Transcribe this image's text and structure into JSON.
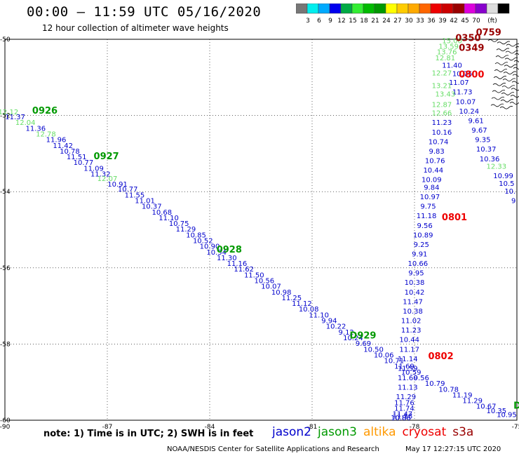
{
  "title": "00:00 – 11:59 UTC 05/16/2020",
  "subtitle": "12 hour collection of altimeter wave heights",
  "note": "note:  1) Time is in UTC;  2) SWH is in feet",
  "credit": "NOAA/NESDIS Center for Satellite Applications and Research",
  "timestamp": "May 17 12:27:15 UTC 2020",
  "legend": [
    {
      "name": "jason2",
      "color": "#0000cc"
    },
    {
      "name": "jason3",
      "color": "#009900"
    },
    {
      "name": "altika",
      "color": "#ff9900"
    },
    {
      "name": "cryosat",
      "color": "#ee0000"
    },
    {
      "name": "s3a",
      "color": "#990000"
    }
  ],
  "colorbar": {
    "colors": [
      "#777777",
      "#00eeee",
      "#00aaff",
      "#0000ee",
      "#00aa44",
      "#33ee33",
      "#00bb00",
      "#009900",
      "#ffff00",
      "#ffcc00",
      "#ffaa00",
      "#ff6600",
      "#ee0000",
      "#cc0000",
      "#990000",
      "#dd00dd",
      "#8800cc",
      "#dddddd",
      "#000000"
    ],
    "labels": [
      "3",
      "6",
      "9",
      "12",
      "15",
      "18",
      "21",
      "24",
      "27",
      "30",
      "33",
      "36",
      "39",
      "42",
      "45",
      "70"
    ],
    "unit": "(ft)"
  },
  "chart_data": {
    "type": "scatter",
    "xlim": [
      -90,
      -75
    ],
    "ylim": [
      -60,
      -50
    ],
    "x_ticks": [
      "-90",
      "-87",
      "-84",
      "-81",
      "-78",
      "-75"
    ],
    "y_ticks": [
      "-50",
      "-52",
      "-54",
      "-56",
      "-58",
      "-60"
    ],
    "pass_labels": [
      {
        "text": "0926",
        "lon": -89.2,
        "lat": -51.95,
        "color": "#009900"
      },
      {
        "text": "0927",
        "lon": -87.4,
        "lat": -53.15,
        "color": "#009900"
      },
      {
        "text": "0928",
        "lon": -83.8,
        "lat": -55.6,
        "color": "#009900"
      },
      {
        "text": "D929",
        "lon": -79.9,
        "lat": -57.85,
        "color": "#009900"
      },
      {
        "text": "D",
        "lon": -75.1,
        "lat": -59.7,
        "color": "#009900"
      },
      {
        "text": "0759",
        "lon": -76.2,
        "lat": -49.9,
        "color": "#990000"
      },
      {
        "text": "0350",
        "lon": -76.8,
        "lat": -50.05,
        "color": "#990000"
      },
      {
        "text": "0349",
        "lon": -76.7,
        "lat": -50.3,
        "color": "#990000"
      },
      {
        "text": "0800",
        "lon": -76.7,
        "lat": -51.0,
        "color": "#ee0000"
      },
      {
        "text": "0801",
        "lon": -77.2,
        "lat": -54.75,
        "color": "#ee0000"
      },
      {
        "text": "0802",
        "lon": -77.6,
        "lat": -58.4,
        "color": "#ee0000"
      }
    ],
    "series": [
      {
        "name": "jason3 pass",
        "color": "#0000cc",
        "points": [
          {
            "lon": -89.9,
            "lat": -51.97,
            "v": "12.12",
            "c": "#66dd66"
          },
          {
            "lon": -89.7,
            "lat": -52.1,
            "v": "11.37"
          },
          {
            "lon": -89.4,
            "lat": -52.25,
            "v": "12.04",
            "c": "#66dd66"
          },
          {
            "lon": -89.1,
            "lat": -52.4,
            "v": "11.36"
          },
          {
            "lon": -88.8,
            "lat": -52.55,
            "v": "12.78",
            "c": "#66dd66"
          },
          {
            "lon": -88.5,
            "lat": -52.7,
            "v": "11.96"
          },
          {
            "lon": -88.3,
            "lat": -52.85,
            "v": "11.42"
          },
          {
            "lon": -88.1,
            "lat": -53.0,
            "v": "10.78"
          },
          {
            "lon": -87.9,
            "lat": -53.15,
            "v": "11.51"
          },
          {
            "lon": -87.7,
            "lat": -53.3,
            "v": "10.77"
          },
          {
            "lon": -87.4,
            "lat": -53.45,
            "v": "11.09"
          },
          {
            "lon": -87.2,
            "lat": -53.6,
            "v": "11.32"
          },
          {
            "lon": -87.0,
            "lat": -53.72,
            "v": "12.07",
            "c": "#66dd66"
          },
          {
            "lon": -86.7,
            "lat": -53.87,
            "v": "10.91"
          },
          {
            "lon": -86.4,
            "lat": -54.0,
            "v": "10.77"
          },
          {
            "lon": -86.2,
            "lat": -54.15,
            "v": "11.55"
          },
          {
            "lon": -85.9,
            "lat": -54.3,
            "v": "11.01"
          },
          {
            "lon": -85.7,
            "lat": -54.45,
            "v": "10.37"
          },
          {
            "lon": -85.4,
            "lat": -54.6,
            "v": "10.68"
          },
          {
            "lon": -85.2,
            "lat": -54.75,
            "v": "11.10"
          },
          {
            "lon": -84.9,
            "lat": -54.9,
            "v": "10.75"
          },
          {
            "lon": -84.7,
            "lat": -55.05,
            "v": "11.29"
          },
          {
            "lon": -84.4,
            "lat": -55.2,
            "v": "10.85"
          },
          {
            "lon": -84.2,
            "lat": -55.35,
            "v": "10.52"
          },
          {
            "lon": -84.0,
            "lat": -55.5,
            "v": "10.90"
          },
          {
            "lon": -83.8,
            "lat": -55.65,
            "v": "10.54"
          },
          {
            "lon": -83.5,
            "lat": -55.8,
            "v": "11.30"
          },
          {
            "lon": -83.2,
            "lat": -55.95,
            "v": "11.16"
          },
          {
            "lon": -83.0,
            "lat": -56.1,
            "v": "11.62"
          },
          {
            "lon": -82.7,
            "lat": -56.25,
            "v": "11.50"
          },
          {
            "lon": -82.4,
            "lat": -56.4,
            "v": "10.56"
          },
          {
            "lon": -82.2,
            "lat": -56.55,
            "v": "10.07"
          },
          {
            "lon": -81.9,
            "lat": -56.7,
            "v": "10.98"
          },
          {
            "lon": -81.6,
            "lat": -56.85,
            "v": "11.25"
          },
          {
            "lon": -81.3,
            "lat": -57.0,
            "v": "11.12"
          },
          {
            "lon": -81.1,
            "lat": -57.15,
            "v": "10.08"
          },
          {
            "lon": -80.8,
            "lat": -57.3,
            "v": "11.10"
          },
          {
            "lon": -80.5,
            "lat": -57.45,
            "v": "9.94"
          },
          {
            "lon": -80.3,
            "lat": -57.6,
            "v": "10.22"
          },
          {
            "lon": -80.0,
            "lat": -57.75,
            "v": "9.12"
          },
          {
            "lon": -79.8,
            "lat": -57.9,
            "v": "10.24"
          },
          {
            "lon": -79.5,
            "lat": -58.05,
            "v": "9.69"
          },
          {
            "lon": -79.2,
            "lat": -58.2,
            "v": "10.50"
          },
          {
            "lon": -78.9,
            "lat": -58.35,
            "v": "10.06"
          },
          {
            "lon": -78.6,
            "lat": -58.5,
            "v": "10.71"
          },
          {
            "lon": -78.3,
            "lat": -58.65,
            "v": "11.69"
          },
          {
            "lon": -78.1,
            "lat": -58.8,
            "v": "10.59"
          },
          {
            "lon": -77.8,
            "lat": -58.95,
            "v": "9.56"
          },
          {
            "lon": -77.4,
            "lat": -59.1,
            "v": "10.79"
          },
          {
            "lon": -77.0,
            "lat": -59.25,
            "v": "10.78"
          },
          {
            "lon": -76.6,
            "lat": -59.4,
            "v": "11.19"
          },
          {
            "lon": -76.3,
            "lat": -59.55,
            "v": "11.29"
          },
          {
            "lon": -75.9,
            "lat": -59.7,
            "v": "10.67"
          },
          {
            "lon": -75.6,
            "lat": -59.82,
            "v": "10.35"
          },
          {
            "lon": -75.3,
            "lat": -59.92,
            "v": "10.95"
          }
        ]
      },
      {
        "name": "cryosat pass 0800-0802",
        "color": "#0000cc",
        "points": [
          {
            "lon": -76.9,
            "lat": -50.1,
            "v": "15.00",
            "c": "#66dd66"
          },
          {
            "lon": -77.0,
            "lat": -50.25,
            "v": "13.59",
            "c": "#66dd66"
          },
          {
            "lon": -77.05,
            "lat": -50.4,
            "v": "13.76",
            "c": "#66dd66"
          },
          {
            "lon": -77.1,
            "lat": -50.55,
            "v": "12.81",
            "c": "#66dd66"
          },
          {
            "lon": -76.9,
            "lat": -50.75,
            "v": "11.40"
          },
          {
            "lon": -77.2,
            "lat": -50.95,
            "v": "12.27",
            "c": "#66dd66"
          },
          {
            "lon": -76.6,
            "lat": -50.97,
            "v": "10.75"
          },
          {
            "lon": -76.7,
            "lat": -51.2,
            "v": "11.07"
          },
          {
            "lon": -77.2,
            "lat": -51.28,
            "v": "13.21",
            "c": "#66dd66"
          },
          {
            "lon": -76.6,
            "lat": -51.45,
            "v": "11.73"
          },
          {
            "lon": -77.1,
            "lat": -51.5,
            "v": "13.43",
            "c": "#66dd66"
          },
          {
            "lon": -76.5,
            "lat": -51.7,
            "v": "10.07"
          },
          {
            "lon": -77.2,
            "lat": -51.78,
            "v": "12.87",
            "c": "#66dd66"
          },
          {
            "lon": -76.4,
            "lat": -51.95,
            "v": "10.24"
          },
          {
            "lon": -77.2,
            "lat": -52.0,
            "v": "12.66",
            "c": "#66dd66"
          },
          {
            "lon": -76.2,
            "lat": -52.2,
            "v": "9.61"
          },
          {
            "lon": -77.2,
            "lat": -52.25,
            "v": "11.23"
          },
          {
            "lon": -76.1,
            "lat": -52.45,
            "v": "9.67"
          },
          {
            "lon": -77.2,
            "lat": -52.5,
            "v": "10.16"
          },
          {
            "lon": -76.0,
            "lat": -52.7,
            "v": "9.35"
          },
          {
            "lon": -77.3,
            "lat": -52.75,
            "v": "10.74"
          },
          {
            "lon": -75.9,
            "lat": -52.95,
            "v": "10.37"
          },
          {
            "lon": -77.35,
            "lat": -53.0,
            "v": "9.83"
          },
          {
            "lon": -75.8,
            "lat": -53.2,
            "v": "10.36"
          },
          {
            "lon": -77.4,
            "lat": -53.25,
            "v": "10.76"
          },
          {
            "lon": -75.6,
            "lat": -53.4,
            "v": "12.33",
            "c": "#66dd66"
          },
          {
            "lon": -77.45,
            "lat": -53.5,
            "v": "10.44"
          },
          {
            "lon": -75.4,
            "lat": -53.65,
            "v": "10.99"
          },
          {
            "lon": -77.5,
            "lat": -53.75,
            "v": "10.09"
          },
          {
            "lon": -75.3,
            "lat": -53.85,
            "v": "10.5"
          },
          {
            "lon": -77.5,
            "lat": -53.95,
            "v": "9.84"
          },
          {
            "lon": -75.2,
            "lat": -54.05,
            "v": "10."
          },
          {
            "lon": -77.55,
            "lat": -54.2,
            "v": "10.97"
          },
          {
            "lon": -75.1,
            "lat": -54.3,
            "v": "9"
          },
          {
            "lon": -77.6,
            "lat": -54.45,
            "v": "9.75"
          },
          {
            "lon": -77.65,
            "lat": -54.7,
            "v": "11.18"
          },
          {
            "lon": -77.7,
            "lat": -54.95,
            "v": "9.56"
          },
          {
            "lon": -77.75,
            "lat": -55.2,
            "v": "10.89"
          },
          {
            "lon": -77.8,
            "lat": -55.45,
            "v": "9.25"
          },
          {
            "lon": -77.85,
            "lat": -55.7,
            "v": "9.91"
          },
          {
            "lon": -77.9,
            "lat": -55.95,
            "v": "10.66"
          },
          {
            "lon": -77.95,
            "lat": -56.2,
            "v": "9.95"
          },
          {
            "lon": -78.0,
            "lat": -56.45,
            "v": "10.38"
          },
          {
            "lon": -78.0,
            "lat": -56.7,
            "v": "10.42"
          },
          {
            "lon": -78.05,
            "lat": -56.95,
            "v": "11.47"
          },
          {
            "lon": -78.05,
            "lat": -57.2,
            "v": "10.38"
          },
          {
            "lon": -78.1,
            "lat": -57.45,
            "v": "11.02"
          },
          {
            "lon": -78.1,
            "lat": -57.7,
            "v": "11.23"
          },
          {
            "lon": -78.15,
            "lat": -57.95,
            "v": "10.44"
          },
          {
            "lon": -78.15,
            "lat": -58.2,
            "v": "11.17"
          },
          {
            "lon": -78.2,
            "lat": -58.45,
            "v": "11.14"
          },
          {
            "lon": -78.2,
            "lat": -58.7,
            "v": "11.59"
          },
          {
            "lon": -78.2,
            "lat": -58.95,
            "v": "11.60"
          },
          {
            "lon": -78.2,
            "lat": -59.2,
            "v": "11.13"
          },
          {
            "lon": -78.25,
            "lat": -59.45,
            "v": "11.29"
          },
          {
            "lon": -78.3,
            "lat": -59.6,
            "v": "11.76"
          },
          {
            "lon": -78.3,
            "lat": -59.75,
            "v": "11.74"
          },
          {
            "lon": -78.35,
            "lat": -59.9,
            "v": "11.47"
          },
          {
            "lon": -78.35,
            "lat": -59.95,
            "v": "11.18"
          },
          {
            "lon": -78.4,
            "lat": -60.0,
            "v": "10.86"
          }
        ]
      }
    ]
  }
}
